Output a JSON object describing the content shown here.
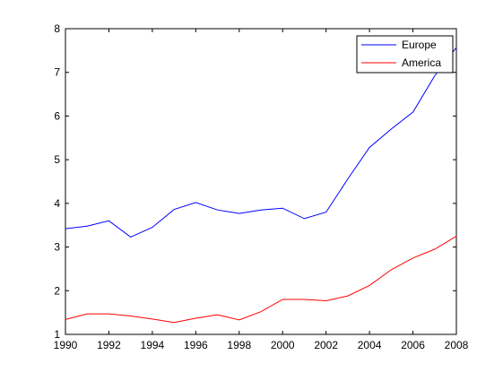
{
  "chart_data": {
    "type": "line",
    "title": "",
    "xlabel": "",
    "ylabel": "",
    "xlim": [
      1990,
      2008
    ],
    "ylim": [
      1,
      8
    ],
    "grid": false,
    "legend_position": "top-right",
    "xticks": [
      1990,
      1992,
      1994,
      1996,
      1998,
      2000,
      2002,
      2004,
      2006,
      2008
    ],
    "yticks": [
      1,
      2,
      3,
      4,
      5,
      6,
      7,
      8
    ],
    "x": [
      1990,
      1991,
      1992,
      1993,
      1994,
      1995,
      1996,
      1997,
      1998,
      1999,
      2000,
      2001,
      2002,
      2003,
      2004,
      2005,
      2006,
      2007,
      2008
    ],
    "series": [
      {
        "name": "Europe",
        "color": "#0000ff",
        "values": [
          3.42,
          3.48,
          3.6,
          3.23,
          3.45,
          3.86,
          4.02,
          3.85,
          3.77,
          3.85,
          3.89,
          3.65,
          3.8,
          4.56,
          5.28,
          5.7,
          6.09,
          6.92,
          7.57
        ]
      },
      {
        "name": "America",
        "color": "#ff0000",
        "values": [
          1.34,
          1.47,
          1.47,
          1.42,
          1.35,
          1.27,
          1.37,
          1.45,
          1.33,
          1.52,
          1.8,
          1.8,
          1.77,
          1.88,
          2.12,
          2.48,
          2.75,
          2.95,
          3.25
        ]
      }
    ]
  }
}
